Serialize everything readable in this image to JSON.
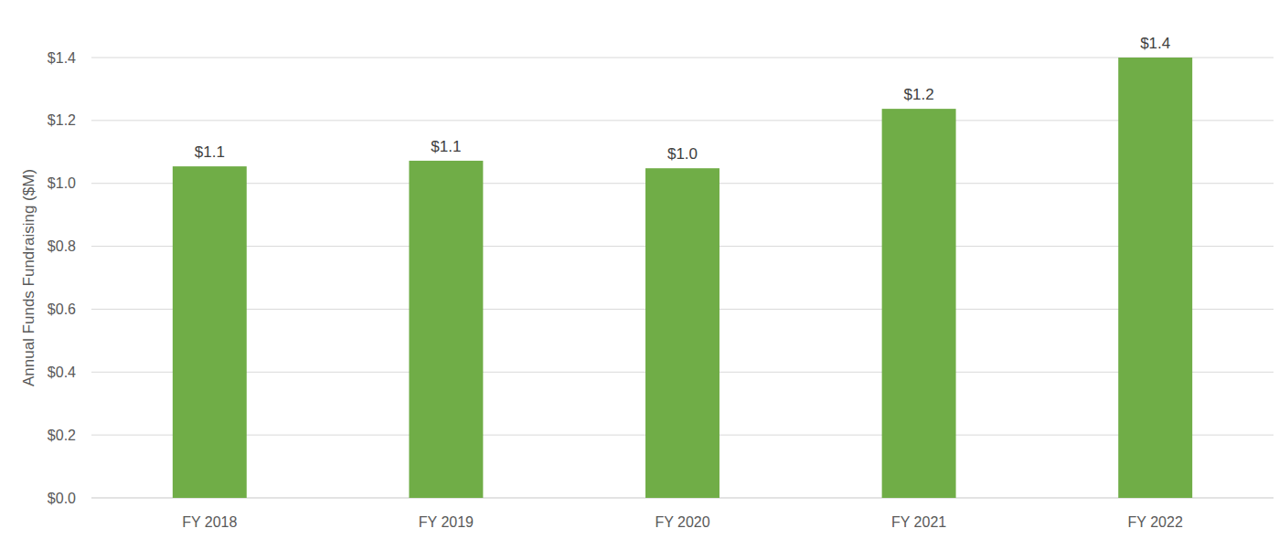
{
  "chart_data": {
    "type": "bar",
    "y_label": "Annual Funds Fundraising ($M)",
    "categories": [
      "FY 2018",
      "FY 2019",
      "FY 2020",
      "FY 2021",
      "FY 2022"
    ],
    "values": [
      1.054,
      1.072,
      1.048,
      1.237,
      1.4
    ],
    "value_labels": [
      "$1.1",
      "$1.1",
      "$1.0",
      "$1.2",
      "$1.4"
    ],
    "color": "#70ad47",
    "ylim": [
      0,
      1.4
    ],
    "yticks": [
      {
        "value": 0,
        "label": "$0.0"
      },
      {
        "value": 0.2,
        "label": "$0.2"
      },
      {
        "value": 0.4,
        "label": "$0.4"
      },
      {
        "value": 0.6,
        "label": "$0.6"
      },
      {
        "value": 0.8,
        "label": "$0.8"
      },
      {
        "value": 1.0,
        "label": "$1.0"
      },
      {
        "value": 1.2,
        "label": "$1.2"
      },
      {
        "value": 1.4,
        "label": "$1.4"
      }
    ],
    "grid": true,
    "data_labels": true
  }
}
